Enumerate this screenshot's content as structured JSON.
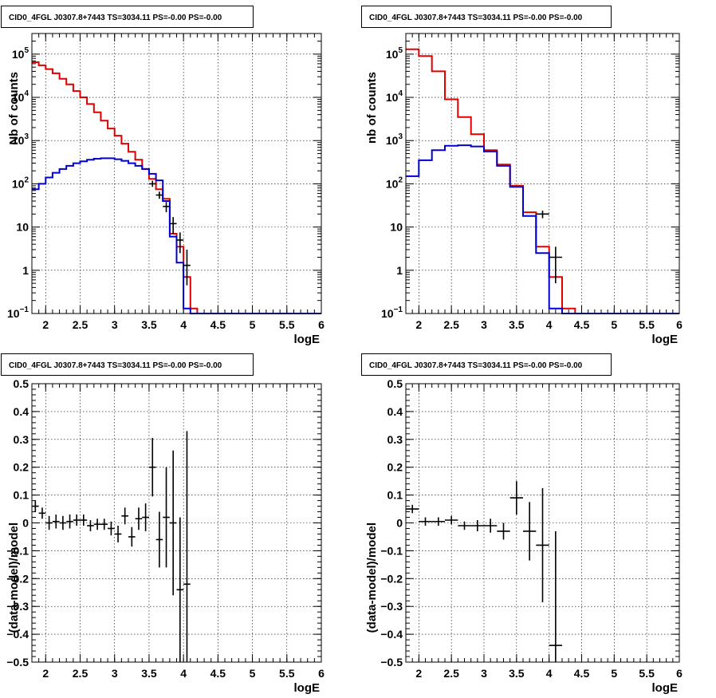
{
  "chart_data": [
    {
      "type": "histogram",
      "title": "CID0_4FGL J0307.8+7443 TS=3034.11 PS=-0.00 PS=-0.00",
      "xlabel": "logE",
      "ylabel": "Nb of counts",
      "xlim": [
        1.8,
        6.0
      ],
      "ylim": [
        0.1,
        300000
      ],
      "yscale": "log",
      "grid": true,
      "xticks": [
        "2",
        "2.5",
        "3",
        "3.5",
        "4",
        "4.5",
        "5",
        "5.5",
        "6"
      ],
      "yticks": [
        {
          "v": 0.1,
          "base": "10",
          "exp": "−1"
        },
        {
          "v": 1,
          "label": "1"
        },
        {
          "v": 10,
          "label": "10"
        },
        {
          "v": 100,
          "base": "10",
          "exp": "2"
        },
        {
          "v": 1000,
          "base": "10",
          "exp": "3"
        },
        {
          "v": 10000,
          "base": "10",
          "exp": "4"
        },
        {
          "v": 100000,
          "base": "10",
          "exp": "5"
        }
      ],
      "bin_width": 0.1,
      "x_start": 1.8,
      "series": [
        {
          "color": "#e00000",
          "values": [
            65000,
            55000,
            45000,
            36000,
            27000,
            20000,
            14000,
            10000,
            7000,
            4500,
            2900,
            1900,
            1300,
            850,
            550,
            360,
            220,
            130,
            75,
            45,
            7,
            3.5,
            0.7,
            0.13,
            0,
            0,
            0,
            0,
            0,
            0,
            0,
            0,
            0,
            0,
            0,
            0,
            0,
            0,
            0,
            0,
            0,
            0
          ]
        },
        {
          "color": "#0000d0",
          "values": [
            75,
            100,
            140,
            180,
            220,
            260,
            300,
            330,
            360,
            380,
            390,
            390,
            370,
            340,
            300,
            260,
            220,
            170,
            120,
            40,
            6,
            1.5,
            0.13,
            0,
            0,
            0,
            0,
            0,
            0,
            0,
            0,
            0,
            0,
            0,
            0,
            0,
            0,
            0,
            0,
            0,
            0,
            0
          ]
        }
      ],
      "data_points": [
        {
          "x": 3.55,
          "y": 100,
          "ylo": 85,
          "yhi": 118
        },
        {
          "x": 3.65,
          "y": 55,
          "ylo": 45,
          "yhi": 66
        },
        {
          "x": 3.75,
          "y": 30,
          "ylo": 22,
          "yhi": 38
        },
        {
          "x": 3.85,
          "y": 12,
          "ylo": 7,
          "yhi": 17
        },
        {
          "x": 3.95,
          "y": 5,
          "ylo": 2.5,
          "yhi": 7.5
        },
        {
          "x": 4.05,
          "y": 1.3,
          "ylo": 0.45,
          "yhi": 3
        }
      ]
    },
    {
      "type": "histogram",
      "title": "CID0_4FGL J0307.8+7443 TS=3034.11 PS=-0.00 PS=-0.00",
      "xlabel": "logE",
      "ylabel": "nb of counts",
      "xlim": [
        1.8,
        6.0
      ],
      "ylim": [
        0.1,
        300000
      ],
      "yscale": "log",
      "grid": true,
      "xticks": [
        "2",
        "2.5",
        "3",
        "3.5",
        "4",
        "4.5",
        "5",
        "5.5",
        "6"
      ],
      "yticks": [
        {
          "v": 0.1,
          "base": "10",
          "exp": "−1"
        },
        {
          "v": 1,
          "label": "1"
        },
        {
          "v": 10,
          "label": "10"
        },
        {
          "v": 100,
          "base": "10",
          "exp": "2"
        },
        {
          "v": 1000,
          "base": "10",
          "exp": "3"
        },
        {
          "v": 10000,
          "base": "10",
          "exp": "4"
        },
        {
          "v": 100000,
          "base": "10",
          "exp": "5"
        }
      ],
      "bin_width": 0.2,
      "x_start": 1.8,
      "series": [
        {
          "color": "#e00000",
          "values": [
            130000,
            90000,
            40000,
            9000,
            3500,
            1400,
            600,
            280,
            90,
            22,
            3.5,
            0.7,
            0.13,
            0,
            0,
            0,
            0,
            0,
            0,
            0,
            0
          ]
        },
        {
          "color": "#0000d0",
          "values": [
            150,
            350,
            600,
            760,
            780,
            730,
            560,
            260,
            85,
            18,
            2.5,
            0.13,
            0,
            0,
            0,
            0,
            0,
            0,
            0,
            0,
            0
          ]
        }
      ],
      "data_points": [
        {
          "x": 3.9,
          "y": 20,
          "ylo": 16,
          "yhi": 24
        },
        {
          "x": 4.1,
          "y": 2,
          "ylo": 0.5,
          "yhi": 3.5
        }
      ]
    },
    {
      "type": "scatter",
      "title": "CID0_4FGL J0307.8+7443 TS=3034.11 PS=-0.00 PS=-0.00",
      "xlabel": "logE",
      "ylabel": "(data-model)/model",
      "xlim": [
        1.8,
        6.0
      ],
      "ylim": [
        -0.5,
        0.5
      ],
      "grid": true,
      "xticks": [
        "2",
        "2.5",
        "3",
        "3.5",
        "4",
        "4.5",
        "5",
        "5.5",
        "6"
      ],
      "yticks": [
        "−0.5",
        "−0.4",
        "−0.3",
        "−0.2",
        "−0.1",
        "0",
        "0.1",
        "0.2",
        "0.3",
        "0.4",
        "0.5"
      ],
      "x_half_width": 0.05,
      "points": [
        {
          "x": 1.85,
          "y": 0.06,
          "err": 0.02
        },
        {
          "x": 1.95,
          "y": 0.035,
          "err": 0.02
        },
        {
          "x": 2.05,
          "y": 0.0,
          "err": 0.025
        },
        {
          "x": 2.15,
          "y": 0.005,
          "err": 0.025
        },
        {
          "x": 2.25,
          "y": 0.0,
          "err": 0.025
        },
        {
          "x": 2.35,
          "y": 0.005,
          "err": 0.025
        },
        {
          "x": 2.45,
          "y": 0.01,
          "err": 0.02
        },
        {
          "x": 2.55,
          "y": 0.01,
          "err": 0.02
        },
        {
          "x": 2.65,
          "y": -0.01,
          "err": 0.02
        },
        {
          "x": 2.75,
          "y": -0.005,
          "err": 0.02
        },
        {
          "x": 2.85,
          "y": -0.005,
          "err": 0.02
        },
        {
          "x": 2.95,
          "y": -0.02,
          "err": 0.025
        },
        {
          "x": 3.05,
          "y": -0.04,
          "err": 0.03
        },
        {
          "x": 3.15,
          "y": 0.025,
          "err": 0.03
        },
        {
          "x": 3.25,
          "y": -0.05,
          "err": 0.035
        },
        {
          "x": 3.35,
          "y": 0.015,
          "err": 0.04
        },
        {
          "x": 3.45,
          "y": 0.02,
          "err": 0.05
        },
        {
          "x": 3.55,
          "y": 0.2,
          "err": 0.105
        },
        {
          "x": 3.65,
          "y": -0.06,
          "err": 0.1
        },
        {
          "x": 3.75,
          "y": 0.02,
          "err": 0.18
        },
        {
          "x": 3.85,
          "y": 0.0,
          "err": 0.26
        },
        {
          "x": 3.95,
          "y": -0.24,
          "err": 0.26
        },
        {
          "x": 4.05,
          "y": -0.22,
          "err": 0.55
        }
      ]
    },
    {
      "type": "scatter",
      "title": "CID0_4FGL J0307.8+7443 TS=3034.11 PS=-0.00 PS=-0.00",
      "xlabel": "logE",
      "ylabel": "(data-model)/model",
      "xlim": [
        1.8,
        6.0
      ],
      "ylim": [
        -0.5,
        0.5
      ],
      "grid": true,
      "xticks": [
        "2",
        "2.5",
        "3",
        "3.5",
        "4",
        "4.5",
        "5",
        "5.5",
        "6"
      ],
      "yticks": [
        "−0.5",
        "−0.4",
        "−0.3",
        "−0.2",
        "−0.1",
        "0",
        "0.1",
        "0.2",
        "0.3",
        "0.4",
        "0.5"
      ],
      "x_half_width": 0.1,
      "points": [
        {
          "x": 1.9,
          "y": 0.05,
          "err": 0.015
        },
        {
          "x": 2.1,
          "y": 0.005,
          "err": 0.015
        },
        {
          "x": 2.3,
          "y": 0.005,
          "err": 0.015
        },
        {
          "x": 2.5,
          "y": 0.01,
          "err": 0.015
        },
        {
          "x": 2.7,
          "y": -0.01,
          "err": 0.015
        },
        {
          "x": 2.9,
          "y": -0.01,
          "err": 0.02
        },
        {
          "x": 3.1,
          "y": -0.01,
          "err": 0.025
        },
        {
          "x": 3.3,
          "y": -0.03,
          "err": 0.03
        },
        {
          "x": 3.5,
          "y": 0.09,
          "err": 0.06
        },
        {
          "x": 3.7,
          "y": -0.03,
          "err": 0.105
        },
        {
          "x": 3.9,
          "y": -0.08,
          "err": 0.205
        },
        {
          "x": 4.1,
          "y": -0.44,
          "err": 0.41
        }
      ]
    }
  ]
}
